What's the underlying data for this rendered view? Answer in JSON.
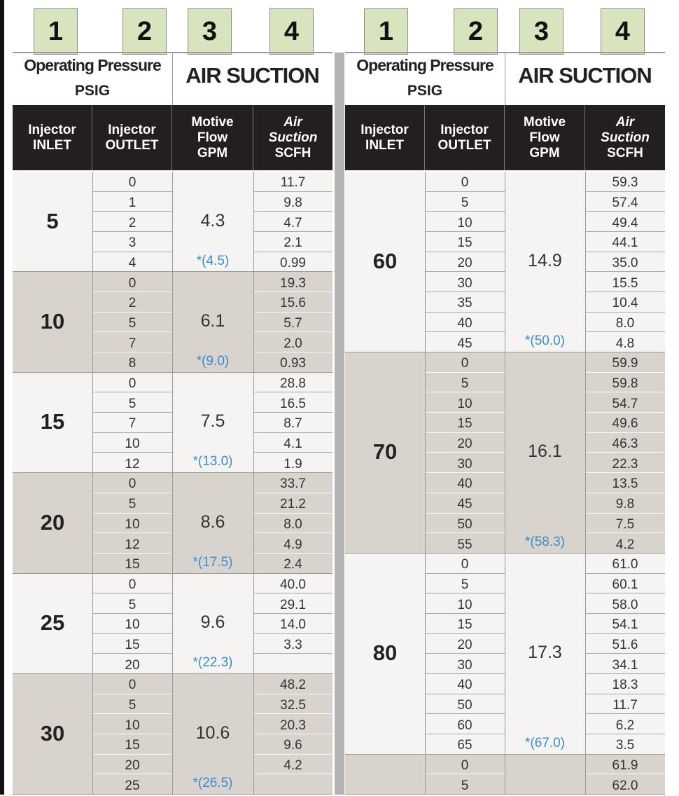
{
  "labels": [
    "1",
    "2",
    "3",
    "4",
    "1",
    "2",
    "3",
    "4"
  ],
  "panels": [
    {
      "header": {
        "operating_pressure": "Operating Pressure",
        "psig": "PSIG",
        "air_suction": "AIR SUCTION",
        "columns": [
          [
            "Injector",
            "INLET"
          ],
          [
            "Injector",
            "OUTLET"
          ],
          [
            "Motive",
            "Flow",
            "GPM"
          ],
          [
            "Air",
            "Suction",
            "SCFH"
          ]
        ]
      },
      "groups": [
        {
          "inlet": "5",
          "motive_flow": "4.3",
          "max_flow": "*(4.5)",
          "rows": [
            [
              "0",
              "11.7"
            ],
            [
              "1",
              "9.8"
            ],
            [
              "2",
              "4.7"
            ],
            [
              "3",
              "2.1"
            ],
            [
              "4",
              "0.99"
            ]
          ]
        },
        {
          "inlet": "10",
          "motive_flow": "6.1",
          "max_flow": "*(9.0)",
          "rows": [
            [
              "0",
              "19.3"
            ],
            [
              "2",
              "15.6"
            ],
            [
              "5",
              "5.7"
            ],
            [
              "7",
              "2.0"
            ],
            [
              "8",
              "0.93"
            ]
          ]
        },
        {
          "inlet": "15",
          "motive_flow": "7.5",
          "max_flow": "*(13.0)",
          "rows": [
            [
              "0",
              "28.8"
            ],
            [
              "5",
              "16.5"
            ],
            [
              "7",
              "8.7"
            ],
            [
              "10",
              "4.1"
            ],
            [
              "12",
              "1.9"
            ]
          ]
        },
        {
          "inlet": "20",
          "motive_flow": "8.6",
          "max_flow": "*(17.5)",
          "rows": [
            [
              "0",
              "33.7"
            ],
            [
              "5",
              "21.2"
            ],
            [
              "10",
              "8.0"
            ],
            [
              "12",
              "4.9"
            ],
            [
              "15",
              "2.4"
            ]
          ]
        },
        {
          "inlet": "25",
          "motive_flow": "9.6",
          "max_flow": "*(22.3)",
          "rows": [
            [
              "0",
              "40.0"
            ],
            [
              "5",
              "29.1"
            ],
            [
              "10",
              "14.0"
            ],
            [
              "15",
              "3.3"
            ],
            [
              "20"
            ]
          ]
        },
        {
          "inlet": "30",
          "motive_flow": "10.6",
          "max_flow": "*(26.5)",
          "rows": [
            [
              "0",
              "48.2"
            ],
            [
              "5",
              "32.5"
            ],
            [
              "10",
              "20.3"
            ],
            [
              "15",
              "9.6"
            ],
            [
              "20",
              "4.2"
            ],
            [
              "25"
            ]
          ]
        }
      ]
    },
    {
      "header": {
        "operating_pressure": "Operating Pressure",
        "psig": "PSIG",
        "air_suction": "AIR SUCTION",
        "columns": [
          [
            "Injector",
            "INLET"
          ],
          [
            "Injector",
            "OUTLET"
          ],
          [
            "Motive",
            "Flow",
            "GPM"
          ],
          [
            "Air",
            "Suction",
            "SCFH"
          ]
        ]
      },
      "groups": [
        {
          "inlet": "60",
          "motive_flow": "14.9",
          "max_flow": "*(50.0)",
          "rows": [
            [
              "0",
              "59.3"
            ],
            [
              "5",
              "57.4"
            ],
            [
              "10",
              "49.4"
            ],
            [
              "15",
              "44.1"
            ],
            [
              "20",
              "35.0"
            ],
            [
              "30",
              "15.5"
            ],
            [
              "35",
              "10.4"
            ],
            [
              "40",
              "8.0"
            ],
            [
              "45",
              "4.8"
            ]
          ]
        },
        {
          "inlet": "70",
          "motive_flow": "16.1",
          "max_flow": "*(58.3)",
          "rows": [
            [
              "0",
              "59.9"
            ],
            [
              "5",
              "59.8"
            ],
            [
              "10",
              "54.7"
            ],
            [
              "15",
              "49.6"
            ],
            [
              "20",
              "46.3"
            ],
            [
              "30",
              "22.3"
            ],
            [
              "40",
              "13.5"
            ],
            [
              "45",
              "9.8"
            ],
            [
              "50",
              "7.5"
            ],
            [
              "55",
              "4.2"
            ]
          ]
        },
        {
          "inlet": "80",
          "motive_flow": "17.3",
          "max_flow": "*(67.0)",
          "rows": [
            [
              "0",
              "61.0"
            ],
            [
              "5",
              "60.1"
            ],
            [
              "10",
              "58.0"
            ],
            [
              "15",
              "54.1"
            ],
            [
              "20",
              "51.6"
            ],
            [
              "30",
              "34.1"
            ],
            [
              "40",
              "18.3"
            ],
            [
              "50",
              "11.7"
            ],
            [
              "60",
              "6.2"
            ],
            [
              "65",
              "3.5"
            ]
          ]
        },
        {
          "rows": [
            [
              "0",
              "61.9"
            ],
            [
              "5",
              "62.0"
            ]
          ]
        }
      ]
    }
  ]
}
